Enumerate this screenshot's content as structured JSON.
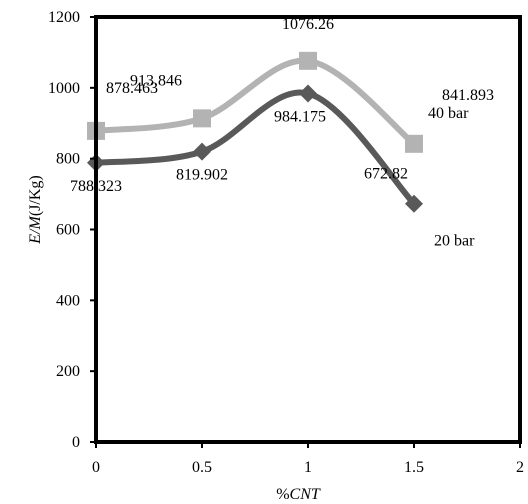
{
  "chart_data": {
    "type": "line",
    "xlabel_prefix": "%",
    "xlabel_var": "CNT",
    "ylabel_var": "E/M",
    "ylabel_unit": "(J/Kg)",
    "xlim": [
      0,
      2
    ],
    "ylim": [
      0,
      1200
    ],
    "x_ticks": [
      "0",
      "0.5",
      "1",
      "1.5",
      "2"
    ],
    "y_ticks": [
      "0",
      "200",
      "400",
      "600",
      "800",
      "1000",
      "1200"
    ],
    "x": [
      0,
      0.5,
      1,
      1.5
    ],
    "series": [
      {
        "name": "40 bar",
        "values": [
          878.463,
          913.846,
          1076.26,
          841.893
        ],
        "labels": [
          "878.463",
          "913.846",
          "1076.26",
          "841.893"
        ],
        "color": "#b3b3b3",
        "marker": "square"
      },
      {
        "name": "20 bar",
        "values": [
          788.323,
          819.902,
          984.175,
          672.82
        ],
        "labels": [
          "788.323",
          "819.902",
          "984.175",
          "672.82"
        ],
        "color": "#595959",
        "marker": "diamond"
      }
    ],
    "grid": false,
    "legend": "inline-right"
  }
}
